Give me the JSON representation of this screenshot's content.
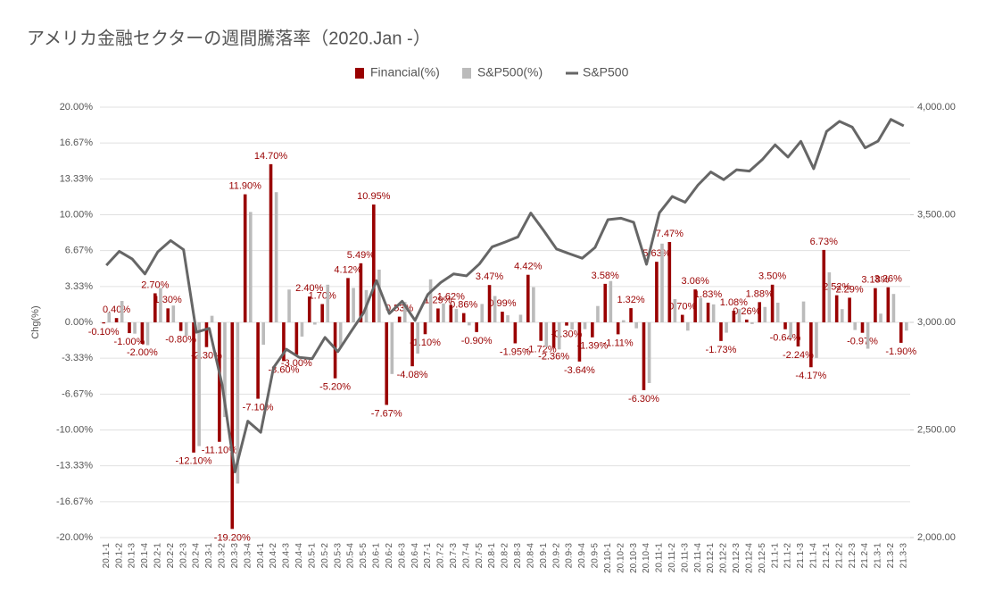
{
  "chart_data": {
    "type": "bar",
    "title": "アメリカ金融セクターの週間騰落率（2020.Jan -）",
    "y_label": "Chg(%)",
    "categories": [
      "20.1-1",
      "20.1-2",
      "20.1-3",
      "20.1-4",
      "20.2-1",
      "20.2-2",
      "20.2-3",
      "20.2-4",
      "20.3-1",
      "20.3-2",
      "20.3-3",
      "20.3-4",
      "20.4-1",
      "20.4-2",
      "20.4-3",
      "20.4-4",
      "20.5-1",
      "20.5-2",
      "20.5-3",
      "20.5-4",
      "20.5-5",
      "20.6-1",
      "20.6-2",
      "20.6-3",
      "20.6-4",
      "20.7-1",
      "20.7-2",
      "20.7-3",
      "20.7-4",
      "20.7-5",
      "20.8-1",
      "20.8-2",
      "20.8-3",
      "20.8-4",
      "20.9-1",
      "20.9-2",
      "20.9-3",
      "20.9-4",
      "20.9-5",
      "20.10-1",
      "20.10-2",
      "20.10-3",
      "20.10-4",
      "20.11-1",
      "20.11-2",
      "20.11-3",
      "20.11-4",
      "20.12-1",
      "20.12-2",
      "20.12-3",
      "20.12-4",
      "20.12-5",
      "21.1-1",
      "21.1-2",
      "21.1-3",
      "21.1-4",
      "21.2-1",
      "21.2-2",
      "21.2-3",
      "21.2-4",
      "21.3-1",
      "21.3-2",
      "21.3-3"
    ],
    "series": [
      {
        "name": "Financial(%)",
        "type": "bar",
        "color": "#990000",
        "values": [
          -0.1,
          0.4,
          -1.0,
          -2.0,
          2.7,
          1.3,
          -0.8,
          -12.1,
          -2.3,
          -11.1,
          -19.2,
          11.9,
          -7.1,
          14.7,
          -3.6,
          -3.0,
          2.4,
          1.7,
          -5.2,
          4.12,
          5.49,
          10.95,
          -7.67,
          0.53,
          -4.08,
          -1.1,
          1.29,
          1.62,
          0.86,
          -0.9,
          3.47,
          0.99,
          -1.95,
          4.42,
          -1.72,
          -2.36,
          -0.3,
          -3.64,
          -1.39,
          3.58,
          -1.11,
          1.32,
          -6.3,
          5.63,
          7.47,
          0.7,
          3.06,
          1.83,
          -1.73,
          1.08,
          0.26,
          1.88,
          3.5,
          -0.64,
          -2.24,
          -4.17,
          6.73,
          2.52,
          2.29,
          -0.97,
          3.18,
          3.26,
          -1.9
        ],
        "value_labels": [
          "-0.10%",
          "0.40%",
          "-1.00%",
          "-2.00%",
          "2.70%",
          "1.30%",
          "-0.80%",
          "-12.10%",
          "-2.30%",
          "-11.10%",
          "-19.20%",
          "11.90%",
          "-7.10%",
          "14.70%",
          "-3.60%",
          "-3.00%",
          "2.40%",
          "1.70%",
          "-5.20%",
          "4.12%",
          "5.49%",
          "10.95%",
          "-7.67%",
          "0.53%",
          "-4.08%",
          "-1.10%",
          "1.29%",
          "1.62%",
          "0.86%",
          "-0.90%",
          "3.47%",
          "0.99%",
          "-1.95%",
          "4.42%",
          "-1.72%",
          "-2.36%",
          "-0.30%",
          "-3.64%",
          "-1.39%",
          "3.58%",
          "-1.11%",
          "1.32%",
          "-6.30%",
          "5.63%",
          "7.47%",
          "0.70%",
          "3.06%",
          "1.83%",
          "-1.73%",
          "1.08%",
          "0.26%",
          "1.88%",
          "3.50%",
          "-0.64%",
          "-2.24%",
          "-4.17%",
          "6.73%",
          "2.52%",
          "2.29%",
          "-0.97%",
          "3.18%",
          "3.26%",
          "-1.90%"
        ]
      },
      {
        "name": "S&P500(%)",
        "type": "bar",
        "color": "#bbbbbb",
        "values": [
          0.93,
          1.99,
          -1.05,
          -2.12,
          3.19,
          1.56,
          -1.25,
          -11.5,
          0.61,
          -8.8,
          -14.98,
          10.26,
          -2.08,
          12.1,
          3.05,
          -1.32,
          -0.21,
          3.5,
          -2.26,
          3.2,
          3.0,
          4.9,
          -4.8,
          1.9,
          -2.9,
          4.0,
          1.76,
          1.26,
          -0.28,
          1.71,
          2.45,
          0.66,
          0.71,
          3.27,
          -2.31,
          -2.51,
          -0.66,
          -0.63,
          1.52,
          3.84,
          0.2,
          -0.55,
          -5.64,
          7.32,
          2.16,
          -0.77,
          2.27,
          1.67,
          -0.96,
          1.25,
          -0.16,
          1.43,
          1.83,
          -1.48,
          1.94,
          -3.31,
          4.65,
          1.23,
          -0.71,
          -2.45,
          0.81,
          2.64,
          -0.77
        ]
      },
      {
        "name": "S&P500",
        "type": "line",
        "axis": "y2",
        "color": "#666666",
        "values": [
          3265,
          3330,
          3295,
          3225,
          3328,
          3380,
          3338,
          2954,
          2972,
          2711,
          2305,
          2541,
          2489,
          2790,
          2875,
          2837,
          2831,
          2930,
          2864,
          2955,
          3044,
          3194,
          3041,
          3098,
          3009,
          3130,
          3185,
          3225,
          3216,
          3271,
          3351,
          3373,
          3397,
          3508,
          3427,
          3341,
          3319,
          3298,
          3348,
          3477,
          3484,
          3465,
          3270,
          3509,
          3585,
          3558,
          3638,
          3699,
          3663,
          3709,
          3703,
          3756,
          3825,
          3768,
          3841,
          3714,
          3887,
          3934,
          3907,
          3811,
          3842,
          3943,
          3913
        ]
      }
    ],
    "ylim": [
      -20,
      20
    ],
    "yticks": [
      {
        "value": 20,
        "label": "20.00%"
      },
      {
        "value": 16.67,
        "label": "16.67%"
      },
      {
        "value": 13.33,
        "label": "13.33%"
      },
      {
        "value": 10,
        "label": "10.00%"
      },
      {
        "value": 6.67,
        "label": "6.67%"
      },
      {
        "value": 3.33,
        "label": "3.33%"
      },
      {
        "value": 0,
        "label": "0.00%"
      },
      {
        "value": -3.33,
        "label": "-3.33%"
      },
      {
        "value": -6.67,
        "label": "-6.67%"
      },
      {
        "value": -10,
        "label": "-10.00%"
      },
      {
        "value": -13.33,
        "label": "-13.33%"
      },
      {
        "value": -16.67,
        "label": "-16.67%"
      },
      {
        "value": -20,
        "label": "-20.00%"
      }
    ],
    "y2lim": [
      2000,
      4000
    ],
    "y2ticks": [
      {
        "value": 2000,
        "label": "2,000.00"
      },
      {
        "value": 2500,
        "label": "2,500.00"
      },
      {
        "value": 3000,
        "label": "3,000.00"
      },
      {
        "value": 3500,
        "label": "3,500.00"
      },
      {
        "value": 4000,
        "label": "4,000.00"
      }
    ],
    "grid": true,
    "legend": "top"
  }
}
